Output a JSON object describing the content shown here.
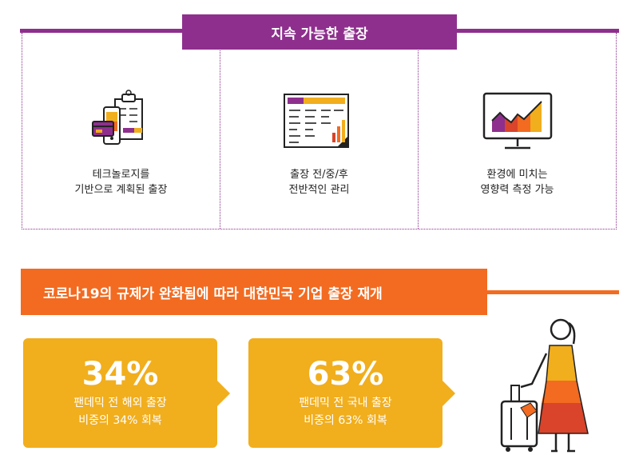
{
  "section1": {
    "title": "지속 가능한 출장",
    "panels": [
      {
        "icon": "tech-travel-icon",
        "line1": "테크놀로지를",
        "line2": "기반으로 계획된 출장"
      },
      {
        "icon": "spreadsheet-icon",
        "line1": "출장 전/중/후",
        "line2": "전반적인 관리"
      },
      {
        "icon": "monitor-chart-icon",
        "line1": "환경에 미치는",
        "line2": "영향력 측정 가능"
      }
    ]
  },
  "section2": {
    "title": "코로나19의 규제가 완화됨에 따라 대한민국 기업 출장 재개",
    "stats": [
      {
        "value": "34%",
        "line1": "팬데믹 전 해외 출장",
        "line2": "비중의 34% 회복"
      },
      {
        "value": "63%",
        "line1": "팬데믹 전 국내 출장",
        "line2": "비중의 63% 회복"
      }
    ],
    "illustration": "traveler-with-luggage-icon"
  },
  "colors": {
    "purple": "#8e2f8d",
    "orange": "#f26b21",
    "gold": "#f1ae1d",
    "red": "#d9442b"
  }
}
